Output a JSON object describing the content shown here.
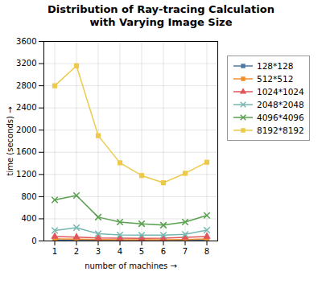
{
  "chart_data": {
    "type": "line",
    "title": "Distribution of Ray-tracing Calculation\nwith Varying Image Size",
    "xlabel": "number of machines",
    "ylabel": "time (seconds)",
    "x": [
      1,
      2,
      3,
      4,
      5,
      6,
      7,
      8
    ],
    "series": [
      {
        "name": "128*128",
        "values": [
          15,
          18,
          12,
          10,
          9,
          9,
          10,
          12
        ],
        "marker": "square"
      },
      {
        "name": "512*512",
        "values": [
          35,
          32,
          25,
          22,
          20,
          22,
          25,
          35
        ],
        "marker": "square"
      },
      {
        "name": "1024*1024",
        "values": [
          80,
          70,
          55,
          50,
          48,
          52,
          65,
          80
        ],
        "marker": "triangle"
      },
      {
        "name": "2048*2048",
        "values": [
          190,
          240,
          130,
          110,
          105,
          105,
          120,
          195
        ],
        "marker": "x"
      },
      {
        "name": "4096*4096",
        "values": [
          740,
          820,
          430,
          340,
          310,
          285,
          340,
          460
        ],
        "marker": "x"
      },
      {
        "name": "8192*8192",
        "values": [
          2800,
          3160,
          1900,
          1410,
          1180,
          1050,
          1220,
          1420
        ],
        "marker": "square"
      }
    ],
    "xlim": [
      0.5,
      8.5
    ],
    "xticks": [
      1,
      2,
      3,
      4,
      5,
      6,
      7,
      8
    ],
    "ylim": [
      0,
      3600
    ],
    "yticks": [
      0,
      400,
      800,
      1200,
      1600,
      2000,
      2400,
      2800,
      3200,
      3600
    ],
    "grid": true,
    "legend": "right"
  }
}
